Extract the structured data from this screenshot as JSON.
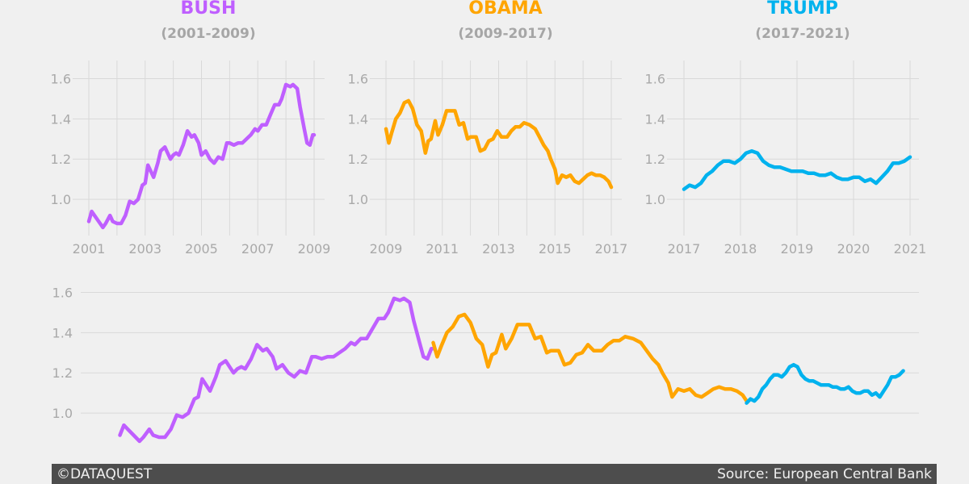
{
  "footer": {
    "left": "©DATAQUEST",
    "right": "Source: European Central Bank"
  },
  "chart_data": [
    {
      "type": "line",
      "id": "bush",
      "title": "BUSH",
      "subtitle": "(2001-2009)",
      "color": "#bf5fff",
      "xlim": [
        2001,
        2009
      ],
      "ylim": [
        0.82,
        1.69
      ],
      "x_ticks": [
        2001,
        2003,
        2005,
        2007,
        2009
      ],
      "y_ticks": [
        "1.0",
        "1.2",
        "1.4",
        "1.6"
      ],
      "grid": true,
      "x": [
        2001.0,
        2001.1,
        2001.2,
        2001.35,
        2001.5,
        2001.6,
        2001.75,
        2001.85,
        2002.0,
        2002.15,
        2002.3,
        2002.45,
        2002.6,
        2002.75,
        2002.9,
        2003.0,
        2003.1,
        2003.2,
        2003.3,
        2003.45,
        2003.55,
        2003.7,
        2003.8,
        2003.9,
        2004.0,
        2004.1,
        2004.2,
        2004.35,
        2004.5,
        2004.65,
        2004.75,
        2004.9,
        2005.0,
        2005.15,
        2005.3,
        2005.45,
        2005.6,
        2005.75,
        2005.9,
        2006.0,
        2006.15,
        2006.3,
        2006.45,
        2006.6,
        2006.75,
        2006.9,
        2007.0,
        2007.15,
        2007.3,
        2007.45,
        2007.6,
        2007.75,
        2007.85,
        2008.0,
        2008.15,
        2008.25,
        2008.4,
        2008.5,
        2008.65,
        2008.75,
        2008.85,
        2008.95,
        2009.0
      ],
      "y": [
        0.89,
        0.94,
        0.92,
        0.89,
        0.86,
        0.88,
        0.92,
        0.89,
        0.88,
        0.88,
        0.92,
        0.99,
        0.98,
        1.0,
        1.07,
        1.08,
        1.17,
        1.14,
        1.11,
        1.18,
        1.24,
        1.26,
        1.23,
        1.2,
        1.22,
        1.23,
        1.22,
        1.27,
        1.34,
        1.31,
        1.32,
        1.28,
        1.22,
        1.24,
        1.2,
        1.18,
        1.21,
        1.2,
        1.28,
        1.28,
        1.27,
        1.28,
        1.28,
        1.3,
        1.32,
        1.35,
        1.34,
        1.37,
        1.37,
        1.42,
        1.47,
        1.47,
        1.5,
        1.57,
        1.56,
        1.57,
        1.55,
        1.46,
        1.35,
        1.28,
        1.27,
        1.32,
        1.32
      ]
    },
    {
      "type": "line",
      "id": "obama",
      "title": "OBAMA",
      "subtitle": "(2009-2017)",
      "color": "#ffa500",
      "xlim": [
        2009,
        2017
      ],
      "ylim": [
        0.82,
        1.69
      ],
      "x_ticks": [
        2009,
        2011,
        2013,
        2015,
        2017
      ],
      "y_ticks": [
        "1.0",
        "1.2",
        "1.4",
        "1.6"
      ],
      "grid": true,
      "x": [
        2009.0,
        2009.1,
        2009.2,
        2009.35,
        2009.5,
        2009.65,
        2009.8,
        2009.95,
        2010.1,
        2010.25,
        2010.4,
        2010.5,
        2010.6,
        2010.75,
        2010.85,
        2011.0,
        2011.15,
        2011.3,
        2011.45,
        2011.6,
        2011.75,
        2011.9,
        2012.0,
        2012.2,
        2012.35,
        2012.5,
        2012.65,
        2012.8,
        2012.95,
        2013.1,
        2013.3,
        2013.45,
        2013.6,
        2013.75,
        2013.9,
        2014.1,
        2014.3,
        2014.45,
        2014.6,
        2014.75,
        2014.85,
        2015.0,
        2015.1,
        2015.25,
        2015.4,
        2015.55,
        2015.7,
        2015.85,
        2016.0,
        2016.15,
        2016.3,
        2016.45,
        2016.6,
        2016.75,
        2016.9,
        2017.0
      ],
      "y": [
        1.35,
        1.28,
        1.33,
        1.4,
        1.43,
        1.48,
        1.49,
        1.45,
        1.37,
        1.34,
        1.23,
        1.29,
        1.3,
        1.39,
        1.32,
        1.37,
        1.44,
        1.44,
        1.44,
        1.37,
        1.38,
        1.3,
        1.31,
        1.31,
        1.24,
        1.25,
        1.29,
        1.3,
        1.34,
        1.31,
        1.31,
        1.34,
        1.36,
        1.36,
        1.38,
        1.37,
        1.35,
        1.31,
        1.27,
        1.24,
        1.2,
        1.15,
        1.08,
        1.12,
        1.11,
        1.12,
        1.09,
        1.08,
        1.1,
        1.12,
        1.13,
        1.12,
        1.12,
        1.11,
        1.09,
        1.06
      ]
    },
    {
      "type": "line",
      "id": "trump",
      "title": "TRUMP",
      "subtitle": "(2017-2021)",
      "color": "#00b2ee",
      "xlim": [
        2017,
        2021
      ],
      "ylim": [
        0.82,
        1.69
      ],
      "x_ticks": [
        2017,
        2018,
        2019,
        2020,
        2021
      ],
      "y_ticks": [
        "1.0",
        "1.2",
        "1.4",
        "1.6"
      ],
      "grid": true,
      "x": [
        2017.0,
        2017.1,
        2017.2,
        2017.3,
        2017.4,
        2017.5,
        2017.6,
        2017.7,
        2017.8,
        2017.9,
        2018.0,
        2018.1,
        2018.2,
        2018.3,
        2018.4,
        2018.5,
        2018.6,
        2018.7,
        2018.8,
        2018.9,
        2019.0,
        2019.1,
        2019.2,
        2019.3,
        2019.4,
        2019.5,
        2019.6,
        2019.7,
        2019.8,
        2019.9,
        2020.0,
        2020.1,
        2020.2,
        2020.3,
        2020.4,
        2020.5,
        2020.6,
        2020.7,
        2020.8,
        2020.9,
        2021.0
      ],
      "y": [
        1.05,
        1.07,
        1.06,
        1.08,
        1.12,
        1.14,
        1.17,
        1.19,
        1.19,
        1.18,
        1.2,
        1.23,
        1.24,
        1.23,
        1.19,
        1.17,
        1.16,
        1.16,
        1.15,
        1.14,
        1.14,
        1.14,
        1.13,
        1.13,
        1.12,
        1.12,
        1.13,
        1.11,
        1.1,
        1.1,
        1.11,
        1.11,
        1.09,
        1.1,
        1.08,
        1.11,
        1.14,
        1.18,
        1.18,
        1.19,
        1.21
      ]
    },
    {
      "type": "line",
      "id": "combined",
      "xlim": [
        2000.0,
        2021.4
      ],
      "ylim": [
        0.82,
        1.69
      ],
      "x_ticks": [],
      "y_ticks": [
        "1.0",
        "1.2",
        "1.4",
        "1.6"
      ],
      "grid": true,
      "segments": [
        "bush",
        "obama",
        "trump"
      ]
    }
  ]
}
